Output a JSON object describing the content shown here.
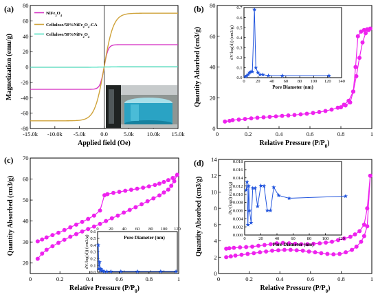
{
  "chart_data": [
    {
      "id": "a",
      "type": "line",
      "panel_label": "(a)",
      "xlabel": "Applied field (Oe)",
      "ylabel": "Magnetization (emu/g)",
      "xlim": [
        -15000,
        15000
      ],
      "ylim": [
        -80,
        80
      ],
      "xticks": [
        -15000,
        -10000,
        -5000,
        0,
        5000,
        10000,
        15000
      ],
      "xtick_labels": [
        "-15.0k",
        "-10.0k",
        "-5.0k",
        "0.0",
        "5.0k",
        "10.0k",
        "15.0k"
      ],
      "yticks": [
        -80,
        -60,
        -40,
        -20,
        0,
        20,
        40,
        60,
        80
      ],
      "legend": "top-left",
      "series": [
        {
          "name": "NiFe2O4",
          "name_main": "NiFe",
          "name_sub1": "2",
          "name_mid": "O",
          "name_sub2": "4",
          "name_tail": "",
          "color": "#d633c4",
          "ms": 29,
          "hk": 800
        },
        {
          "name": "Cellulose/50%NiFe2O4-CA",
          "name_main": "Cellulose/50%NiFe",
          "name_sub1": "2",
          "name_mid": "O",
          "name_sub2": "4",
          "name_tail": "-CA",
          "color": "#cfa33a",
          "ms": 70,
          "hk": 1900
        },
        {
          "name": "Cellulose/50%NiFe2O4",
          "name_main": "Cellulose/50%NiFe",
          "name_sub1": "2",
          "name_mid": "O",
          "name_sub2": "4",
          "name_tail": "",
          "color": "#4fe0c0",
          "ms": 0.3,
          "hk": 3000
        }
      ],
      "inset": {
        "type": "photo",
        "subject": "beaker of blue liquid next to a magnet"
      }
    },
    {
      "id": "b",
      "type": "line",
      "panel_label": "(b)",
      "xlabel": "Relative Pressure (P/P0)",
      "ylabel": "Quantity Adsorbed (cm3/g)",
      "xlim": [
        0,
        1.0
      ],
      "ylim": [
        0,
        80
      ],
      "xticks": [
        0.0,
        0.2,
        0.4,
        0.6,
        0.8,
        1.0
      ],
      "yticks": [
        0,
        20,
        40,
        60,
        80
      ],
      "color": "#ee22ee",
      "adsorption": {
        "x": [
          0.05,
          0.08,
          0.1,
          0.14,
          0.18,
          0.22,
          0.26,
          0.3,
          0.34,
          0.38,
          0.42,
          0.46,
          0.5,
          0.54,
          0.58,
          0.62,
          0.66,
          0.7,
          0.74,
          0.78,
          0.82,
          0.85,
          0.88,
          0.9,
          0.92,
          0.94,
          0.96,
          0.98,
          0.99
        ],
        "y": [
          4.5,
          5,
          5.4,
          5.8,
          6.2,
          6.6,
          7.0,
          7.3,
          7.6,
          7.9,
          8.2,
          8.5,
          8.8,
          9.2,
          9.6,
          10.1,
          10.7,
          11.4,
          12.3,
          13.5,
          15.5,
          18,
          24,
          34,
          46,
          56,
          62,
          64,
          65
        ]
      },
      "desorption": {
        "x": [
          0.99,
          0.97,
          0.95,
          0.93,
          0.91,
          0.895,
          0.88,
          0.86,
          0.83,
          0.8
        ],
        "y": [
          65,
          64.5,
          64,
          63,
          60,
          40,
          24,
          17,
          15,
          13.8
        ]
      },
      "inset": {
        "type": "line",
        "xlabel": "Pore Diameter (nm)",
        "ylabel": "dV/log(d)) (cm3/g)",
        "xlim": [
          0,
          140
        ],
        "ylim": [
          0,
          0.7
        ],
        "xticks": [
          0,
          20,
          40,
          60,
          80,
          100,
          120,
          140
        ],
        "yticks": [
          0.0,
          0.1,
          0.2,
          0.3,
          0.4,
          0.5,
          0.6,
          0.7
        ],
        "ytick_labels": [
          "0.0",
          "0.1",
          "0.2",
          "0.3",
          "0.4",
          "0.5",
          "0.6",
          "0.7"
        ],
        "color": "#2255dd",
        "x": [
          2,
          4,
          6,
          8,
          10,
          12,
          15,
          17,
          20,
          23,
          27,
          35,
          55,
          122
        ],
        "y": [
          0.01,
          0.02,
          0.03,
          0.05,
          0.06,
          0.06,
          0.68,
          0.1,
          0.05,
          0.03,
          0.03,
          0.02,
          0.02,
          0.02
        ]
      }
    },
    {
      "id": "c",
      "type": "line",
      "panel_label": "(c)",
      "xlabel": "Relative Pressure (P/P0)",
      "ylabel": "Quantity Absorbed (cm3/g)",
      "xlim": [
        0,
        1.0
      ],
      "ylim": [
        15,
        70
      ],
      "xticks": [
        0.0,
        0.2,
        0.4,
        0.6,
        0.8,
        1.0
      ],
      "yticks": [
        20,
        30,
        40,
        50,
        60,
        70
      ],
      "color": "#ee22ee",
      "adsorption": {
        "x": [
          0.05,
          0.08,
          0.11,
          0.15,
          0.19,
          0.23,
          0.27,
          0.31,
          0.35,
          0.39,
          0.43,
          0.47,
          0.51,
          0.55,
          0.59,
          0.63,
          0.67,
          0.71,
          0.75,
          0.79,
          0.83,
          0.87,
          0.9,
          0.93,
          0.95,
          0.97,
          0.99
        ],
        "y": [
          22,
          24.5,
          26.3,
          28,
          29.6,
          31.1,
          32.5,
          33.8,
          35,
          36.2,
          37.4,
          38.6,
          40,
          41.3,
          42.6,
          44,
          45.3,
          46.6,
          48,
          49.4,
          50.8,
          52.2,
          53.6,
          55,
          56.8,
          59,
          62
        ]
      },
      "desorption": {
        "x": [
          0.99,
          0.96,
          0.93,
          0.9,
          0.87,
          0.84,
          0.8,
          0.76,
          0.72,
          0.68,
          0.64,
          0.6,
          0.56,
          0.52,
          0.5,
          0.47,
          0.43,
          0.39,
          0.35,
          0.31,
          0.27,
          0.23,
          0.19,
          0.15,
          0.11,
          0.08,
          0.05
        ],
        "y": [
          62,
          60.5,
          59.5,
          58.6,
          57.8,
          57.2,
          56.5,
          55.9,
          55.4,
          54.9,
          54.4,
          53.9,
          53.4,
          52.8,
          52.3,
          45,
          42.6,
          41,
          39.6,
          38.3,
          37,
          35.7,
          34.4,
          33.3,
          32.2,
          31.2,
          30.3
        ]
      },
      "inset": {
        "type": "line",
        "xlabel": "Pore Diameter (nm)",
        "ylabel": "dV/log(d)) (cm3/g)",
        "xlim": [
          0,
          120
        ],
        "ylim": [
          0,
          0.6
        ],
        "xticks": [
          0,
          20,
          40,
          60,
          80,
          100,
          120
        ],
        "yticks": [
          0.0,
          0.1,
          0.2,
          0.3,
          0.4,
          0.5,
          0.6
        ],
        "ytick_labels": [
          "0.0",
          "0.1",
          "0.2",
          "0.3",
          "0.4",
          "0.5",
          "0.6"
        ],
        "color": "#2255dd",
        "x": [
          1,
          2,
          3,
          4,
          5,
          6,
          8,
          10,
          14,
          20,
          35,
          60,
          95,
          118
        ],
        "y": [
          0.4,
          0.05,
          0.15,
          0.03,
          0.05,
          0.02,
          0.02,
          0.01,
          0.01,
          0.01,
          0.01,
          0.01,
          0.01,
          0.01
        ]
      }
    },
    {
      "id": "d",
      "type": "line",
      "panel_label": "(d)",
      "xlabel": "Relative Pressure (P/P0)",
      "ylabel": "Quantity Absorbed (cm3/g)",
      "xlim": [
        0,
        1.0
      ],
      "ylim": [
        0,
        14
      ],
      "xticks": [
        0.0,
        0.2,
        0.4,
        0.6,
        0.8,
        1.0
      ],
      "yticks": [
        0,
        2,
        4,
        6,
        8,
        10,
        12,
        14
      ],
      "color": "#ee22ee",
      "adsorption": {
        "x": [
          0.05,
          0.08,
          0.11,
          0.15,
          0.19,
          0.23,
          0.27,
          0.31,
          0.35,
          0.39,
          0.43,
          0.47,
          0.51,
          0.55,
          0.59,
          0.63,
          0.67,
          0.71,
          0.75,
          0.79,
          0.83,
          0.87,
          0.9,
          0.93,
          0.95,
          0.97,
          0.99
        ],
        "y": [
          2,
          2.1,
          2.2,
          2.3,
          2.4,
          2.5,
          2.6,
          2.7,
          2.8,
          2.85,
          2.9,
          2.9,
          2.85,
          2.8,
          2.7,
          2.6,
          2.5,
          2.4,
          2.35,
          2.4,
          2.6,
          2.9,
          3.3,
          3.9,
          4.6,
          5.8,
          12
        ]
      },
      "desorption": {
        "x": [
          0.99,
          0.97,
          0.95,
          0.92,
          0.89,
          0.86,
          0.82,
          0.78,
          0.74,
          0.7,
          0.66,
          0.62,
          0.58,
          0.54,
          0.5,
          0.46,
          0.42,
          0.38,
          0.34,
          0.3,
          0.26,
          0.22,
          0.18,
          0.14,
          0.1,
          0.07,
          0.05
        ],
        "y": [
          12,
          8,
          6,
          5.2,
          4.8,
          4.5,
          4.3,
          4.1,
          3.9,
          3.8,
          3.7,
          3.65,
          3.6,
          3.6,
          3.65,
          3.7,
          3.75,
          3.7,
          3.6,
          3.5,
          3.4,
          3.3,
          3.25,
          3.2,
          3.15,
          3.1,
          3.05
        ]
      },
      "inset": {
        "type": "line",
        "xlabel": "Pore Diameter (nm)",
        "ylabel": "dV/(logd) (cm3/g)",
        "xlim": [
          0,
          120
        ],
        "ylim": [
          0,
          0.018
        ],
        "xticks": [
          0,
          20,
          40,
          60,
          80,
          100,
          120
        ],
        "yticks": [
          0.0,
          0.002,
          0.004,
          0.006,
          0.008,
          0.01,
          0.012,
          0.014,
          0.016,
          0.018
        ],
        "ytick_labels": [
          "0.000",
          "0.002",
          "0.004",
          "0.006",
          "0.008",
          "0.010",
          "0.012",
          "0.014",
          "0.016",
          "0.018"
        ],
        "color": "#2255dd",
        "x": [
          2,
          3,
          4,
          5,
          6,
          8,
          10,
          13,
          16,
          20,
          24,
          28,
          32,
          36,
          42,
          55,
          125
        ],
        "y": [
          0.011,
          0.013,
          0.0025,
          0.012,
          0.006,
          0.003,
          0.0115,
          0.0115,
          0.007,
          0.0121,
          0.012,
          0.006,
          0.006,
          0.0117,
          0.0097,
          0.009,
          0.0095
        ]
      }
    }
  ]
}
